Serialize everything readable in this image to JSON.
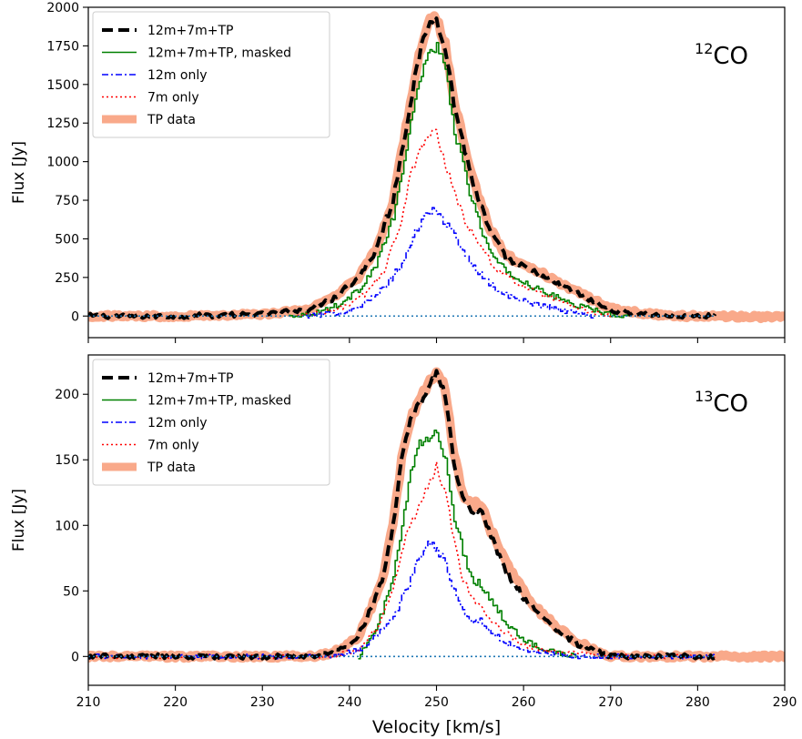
{
  "chart_data": [
    {
      "type": "line",
      "panel_label": "CO",
      "isotope_mass": "12",
      "ylabel": "Flux [Jy]",
      "xlabel": "",
      "xlim": [
        210,
        290
      ],
      "ylim": [
        -140,
        2000
      ],
      "yticks": [
        0,
        250,
        500,
        750,
        1000,
        1250,
        1500,
        1750,
        2000
      ],
      "xticks": [
        210,
        220,
        230,
        240,
        250,
        260,
        270,
        280,
        290
      ],
      "show_xtick_labels": false,
      "legend_position": "top-left",
      "series": [
        {
          "name": "12m+7m+TP",
          "color": "#000000",
          "style": "dashed",
          "x": [
            210,
            220,
            230,
            235,
            238,
            241,
            243,
            245,
            247,
            248,
            249,
            250,
            251,
            252,
            254,
            256,
            258,
            262,
            266,
            270,
            274,
            278,
            282
          ],
          "y": [
            0,
            0,
            10,
            40,
            110,
            250,
            420,
            750,
            1380,
            1680,
            1880,
            1920,
            1750,
            1380,
            900,
            560,
            370,
            260,
            150,
            40,
            10,
            0,
            0
          ]
        },
        {
          "name": "12m+7m+TP, masked",
          "color": "#008000",
          "style": "solid",
          "x": [
            233,
            236,
            239,
            241,
            243,
            245,
            247,
            248,
            249,
            250,
            251,
            252,
            254,
            256,
            258,
            262,
            266,
            270,
            272
          ],
          "y": [
            0,
            20,
            80,
            170,
            330,
            640,
            1240,
            1540,
            1700,
            1750,
            1590,
            1200,
            750,
            420,
            280,
            160,
            70,
            10,
            0
          ]
        },
        {
          "name": "12m only",
          "color": "#0000ff",
          "style": "dashdot",
          "x": [
            235,
            238,
            240,
            242,
            244,
            246,
            247,
            248,
            249,
            250,
            251,
            253,
            255,
            257,
            259,
            262,
            265,
            268
          ],
          "y": [
            0,
            15,
            40,
            90,
            190,
            340,
            470,
            600,
            670,
            680,
            600,
            420,
            270,
            160,
            110,
            70,
            30,
            0
          ]
        },
        {
          "name": "7m only",
          "color": "#ff0000",
          "style": "dotted",
          "x": [
            234,
            237,
            240,
            242,
            244,
            246,
            247,
            248,
            249,
            250,
            251,
            253,
            255,
            257,
            259,
            262,
            266,
            270
          ],
          "y": [
            0,
            20,
            70,
            150,
            300,
            620,
            900,
            1050,
            1180,
            1200,
            990,
            650,
            450,
            300,
            220,
            140,
            50,
            0
          ]
        },
        {
          "name": "TP data",
          "color": "#f9a98a",
          "style": "thick",
          "x": [
            210,
            220,
            230,
            235,
            238,
            241,
            243,
            245,
            247,
            248,
            249,
            250,
            251,
            252,
            254,
            256,
            258,
            262,
            266,
            270,
            274,
            278,
            282,
            290
          ],
          "y": [
            0,
            0,
            10,
            40,
            110,
            250,
            420,
            750,
            1380,
            1680,
            1900,
            1930,
            1760,
            1400,
            910,
            580,
            390,
            280,
            160,
            50,
            15,
            0,
            0,
            -10
          ]
        }
      ],
      "baseline": {
        "y": 0,
        "color": "#1f77b4",
        "style": "dotted",
        "x": [
          210,
          282
        ]
      }
    },
    {
      "type": "line",
      "panel_label": "CO",
      "isotope_mass": "13",
      "ylabel": "Flux [Jy]",
      "xlabel": "Velocity [km/s]",
      "xlim": [
        210,
        290
      ],
      "ylim": [
        -22,
        230
      ],
      "yticks": [
        0,
        50,
        100,
        150,
        200
      ],
      "xticks": [
        210,
        220,
        230,
        240,
        250,
        260,
        270,
        280,
        290
      ],
      "show_xtick_labels": true,
      "legend_position": "top-left",
      "series": [
        {
          "name": "12m+7m+TP",
          "color": "#000000",
          "style": "dashed",
          "x": [
            210,
            220,
            230,
            236,
            239,
            241,
            242,
            243,
            244,
            245,
            246,
            247,
            248,
            249,
            250,
            251,
            252,
            253,
            254,
            255,
            256,
            257,
            258,
            260,
            262,
            264,
            266,
            268,
            270,
            275,
            280,
            282
          ],
          "y": [
            0,
            0,
            0,
            0,
            5,
            15,
            30,
            45,
            65,
            100,
            150,
            178,
            192,
            205,
            215,
            200,
            150,
            120,
            110,
            112,
            95,
            80,
            65,
            45,
            30,
            20,
            10,
            5,
            0,
            0,
            0,
            0
          ]
        },
        {
          "name": "12m+7m+TP, masked",
          "color": "#008000",
          "style": "solid",
          "x": [
            241,
            243,
            245,
            246,
            247,
            248,
            249,
            250,
            251,
            252,
            253,
            254,
            255,
            256,
            258,
            260,
            263,
            266
          ],
          "y": [
            0,
            20,
            60,
            100,
            140,
            162,
            165,
            172,
            150,
            105,
            80,
            60,
            55,
            45,
            25,
            12,
            4,
            0
          ]
        },
        {
          "name": "12m only",
          "color": "#0000ff",
          "style": "dashdot",
          "x": [
            210,
            220,
            230,
            238,
            241,
            243,
            245,
            246,
            247,
            248,
            249,
            250,
            251,
            252,
            253,
            254,
            255,
            256,
            258,
            260,
            263,
            266,
            270,
            275,
            280,
            282
          ],
          "y": [
            0,
            0,
            0,
            0,
            5,
            15,
            30,
            45,
            60,
            75,
            85,
            82,
            70,
            50,
            35,
            25,
            28,
            20,
            10,
            5,
            2,
            0,
            0,
            0,
            0,
            0
          ]
        },
        {
          "name": "7m only",
          "color": "#ff0000",
          "style": "dotted",
          "x": [
            210,
            220,
            230,
            238,
            241,
            243,
            245,
            246,
            247,
            248,
            249,
            250,
            251,
            252,
            253,
            254,
            256,
            258,
            260,
            263,
            266,
            270,
            275,
            280,
            282
          ],
          "y": [
            0,
            0,
            0,
            0,
            5,
            20,
            50,
            80,
            100,
            115,
            130,
            145,
            125,
            90,
            60,
            45,
            30,
            18,
            8,
            4,
            2,
            0,
            0,
            0,
            0
          ]
        },
        {
          "name": "TP data",
          "color": "#f9a98a",
          "style": "thick",
          "x": [
            210,
            220,
            230,
            236,
            239,
            241,
            242,
            243,
            244,
            245,
            246,
            247,
            248,
            249,
            250,
            251,
            252,
            253,
            254,
            255,
            256,
            257,
            258,
            260,
            262,
            264,
            266,
            268,
            270,
            275,
            280,
            285,
            290
          ],
          "y": [
            0,
            0,
            0,
            0,
            5,
            15,
            30,
            45,
            65,
            100,
            150,
            180,
            195,
            208,
            218,
            205,
            155,
            125,
            115,
            118,
            100,
            85,
            70,
            50,
            33,
            22,
            12,
            6,
            0,
            0,
            0,
            0,
            0
          ]
        }
      ],
      "baseline": {
        "y": 0,
        "color": "#1f77b4",
        "style": "dotted",
        "x": [
          210,
          282
        ]
      }
    }
  ]
}
